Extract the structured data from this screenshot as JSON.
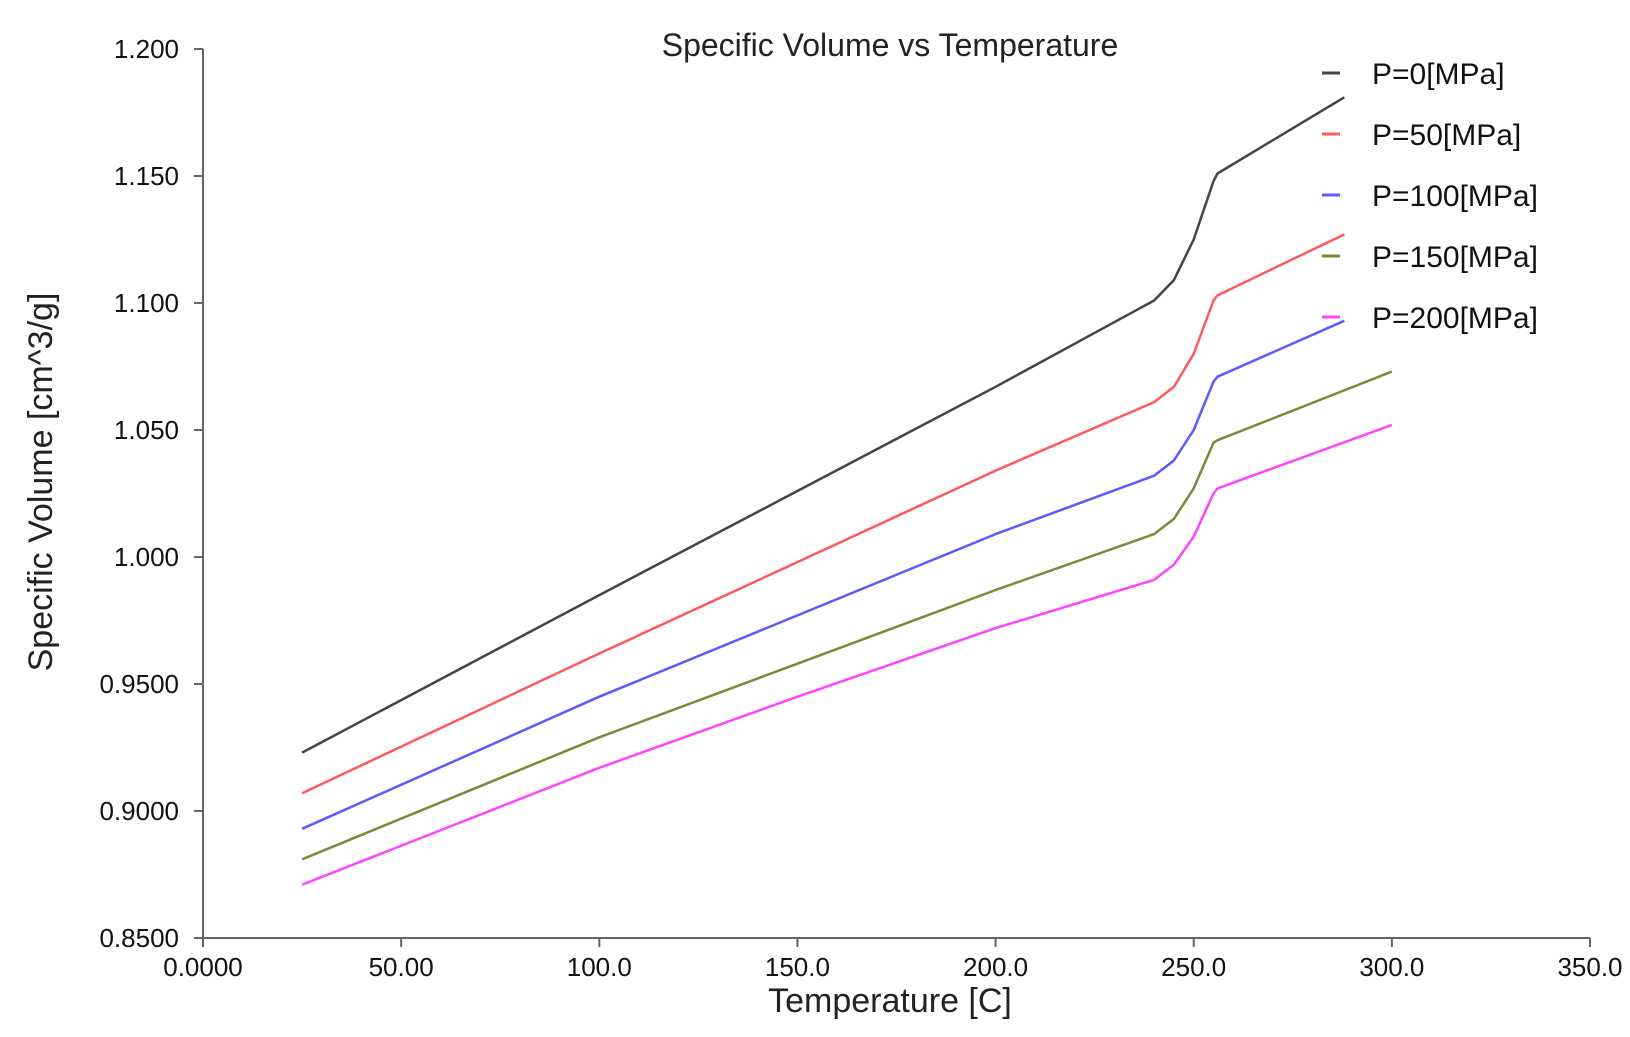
{
  "chart_data": {
    "type": "line",
    "title": "Specific Volume vs Temperature",
    "xlabel": "Temperature [C]",
    "ylabel": "Specific Volume [cm^3/g]",
    "xlim": [
      0,
      350
    ],
    "ylim": [
      0.85,
      1.2
    ],
    "xticks": [
      0,
      50,
      100,
      150,
      200,
      250,
      300,
      350
    ],
    "xtick_labels": [
      "0.0000",
      "50.00",
      "100.0",
      "150.0",
      "200.0",
      "250.0",
      "300.0",
      "350.0"
    ],
    "yticks": [
      0.85,
      0.9,
      0.95,
      1.0,
      1.05,
      1.1,
      1.15,
      1.2
    ],
    "ytick_labels": [
      "0.8500",
      "0.9000",
      "0.9500",
      "1.000",
      "1.050",
      "1.100",
      "1.150",
      "1.200"
    ],
    "grid": false,
    "legend_position": "top-right",
    "series": [
      {
        "name": "P=0[MPa]",
        "color": "#444444",
        "x": [
          25,
          100,
          150,
          200,
          240,
          245,
          250,
          255,
          256,
          288
        ],
        "y": [
          0.923,
          0.985,
          1.026,
          1.067,
          1.101,
          1.109,
          1.125,
          1.148,
          1.151,
          1.181
        ]
      },
      {
        "name": "P=50[MPa]",
        "color": "#ff5a5a",
        "x": [
          25,
          100,
          150,
          200,
          240,
          245,
          250,
          255,
          256,
          288
        ],
        "y": [
          0.907,
          0.962,
          0.998,
          1.034,
          1.061,
          1.067,
          1.08,
          1.101,
          1.103,
          1.127
        ]
      },
      {
        "name": "P=100[MPa]",
        "color": "#5a5aff",
        "x": [
          25,
          100,
          150,
          200,
          240,
          245,
          250,
          255,
          256,
          288
        ],
        "y": [
          0.893,
          0.945,
          0.977,
          1.009,
          1.032,
          1.038,
          1.05,
          1.069,
          1.071,
          1.093
        ]
      },
      {
        "name": "P=150[MPa]",
        "color": "#7a8a3a",
        "x": [
          25,
          100,
          150,
          200,
          240,
          245,
          250,
          255,
          256,
          300
        ],
        "y": [
          0.881,
          0.929,
          0.958,
          0.987,
          1.009,
          1.015,
          1.027,
          1.045,
          1.046,
          1.073
        ]
      },
      {
        "name": "P=200[MPa]",
        "color": "#ff44ff",
        "x": [
          25,
          100,
          150,
          200,
          240,
          245,
          250,
          255,
          256,
          300
        ],
        "y": [
          0.871,
          0.917,
          0.945,
          0.972,
          0.991,
          0.997,
          1.008,
          1.025,
          1.027,
          1.052
        ]
      }
    ]
  }
}
